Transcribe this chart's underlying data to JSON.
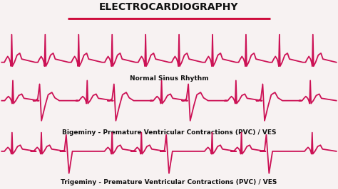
{
  "title": "ELECTROCARDIOGRAPHY",
  "title_color": "#111111",
  "title_underline_color": "#cc0033",
  "bg_color": "#f7f2f2",
  "ecg_color": "#cc1155",
  "ecg_linewidth": 1.3,
  "label1": "Normal Sinus Rhythm",
  "label2": "Bigeminy - Premature Ventricular Contractions (PVC) / VES",
  "label3": "Trigeminy - Premature Ventricular Contractions (PVC) / VES",
  "label_fontsize": 6.5,
  "title_fontsize": 10
}
